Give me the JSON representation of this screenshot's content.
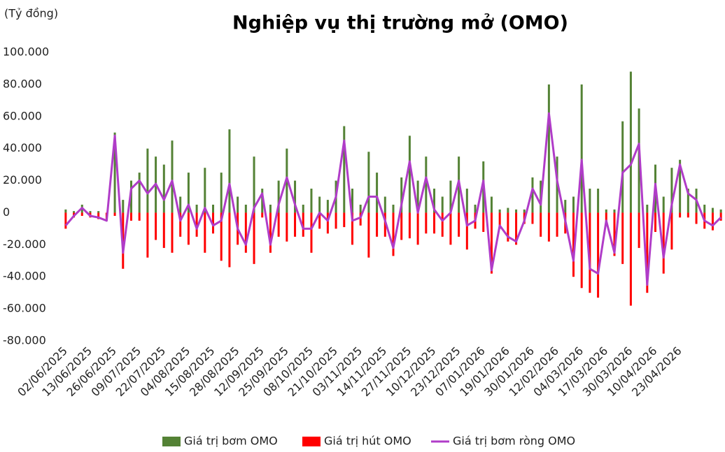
{
  "chart_data": {
    "type": "bar-line",
    "title": "Nghiệp vụ thị trường mở (OMO)",
    "y_label": "(Tỷ đồng)",
    "categories": [
      "02/06/2025",
      null,
      null,
      "13/06/2025",
      null,
      null,
      "26/06/2025",
      null,
      null,
      "09/07/2025",
      null,
      null,
      "22/07/2025",
      null,
      null,
      "04/08/2025",
      null,
      null,
      "15/08/2025",
      null,
      null,
      "28/08/2025",
      null,
      null,
      "12/09/2025",
      null,
      null,
      "25/09/2025",
      null,
      null,
      "08/10/2025",
      null,
      null,
      "21/10/2025",
      null,
      null,
      "03/11/2025",
      null,
      null,
      "14/11/2025",
      null,
      null,
      "27/11/2025",
      null,
      null,
      "10/12/2025",
      null,
      null,
      "23/12/2025",
      null,
      null,
      "07/01/2026",
      null,
      null,
      "19/01/2026",
      null,
      null,
      "30/01/2026",
      null,
      null,
      "12/02/2026",
      null,
      null,
      "04/03/2026",
      null,
      null,
      "17/03/2026",
      null,
      null,
      "30/03/2026",
      null,
      null,
      "10/04/2026",
      null,
      null,
      "23/04/2026",
      null,
      null,
      null,
      null,
      null
    ],
    "series": [
      {
        "name": "Giá trị bơm OMO",
        "type": "bar",
        "color": "#548235",
        "values": [
          2000,
          1000,
          5000,
          1000,
          1000,
          0,
          50000,
          8000,
          20000,
          25000,
          40000,
          35000,
          30000,
          45000,
          10000,
          25000,
          5000,
          28000,
          5000,
          25000,
          52000,
          10000,
          5000,
          35000,
          15000,
          5000,
          20000,
          40000,
          20000,
          5000,
          15000,
          10000,
          8000,
          20000,
          54000,
          15000,
          5000,
          38000,
          25000,
          10000,
          5000,
          22000,
          48000,
          20000,
          35000,
          15000,
          10000,
          20000,
          35000,
          15000,
          5000,
          32000,
          10000,
          2000,
          3000,
          2000,
          2000,
          22000,
          20000,
          80000,
          35000,
          8000,
          10000,
          80000,
          15000,
          15000,
          2000,
          2000,
          57000,
          88000,
          65000,
          5000,
          30000,
          10000,
          28000,
          33000,
          15000,
          15000,
          5000,
          3000,
          2000
        ]
      },
      {
        "name": "Giá trị hút OMO",
        "type": "bar",
        "color": "#ff0000",
        "values": [
          -10000,
          -3000,
          -2000,
          -3000,
          -4000,
          -5000,
          -2000,
          -35000,
          -5000,
          -5000,
          -28000,
          -17000,
          -22000,
          -25000,
          -15000,
          -20000,
          -15000,
          -25000,
          -13000,
          -30000,
          -34000,
          -20000,
          -25000,
          -32000,
          -3000,
          -25000,
          -15000,
          -18000,
          -15000,
          -15000,
          -25000,
          -10000,
          -13000,
          -10000,
          -9000,
          -20000,
          -8000,
          -28000,
          -15000,
          -15000,
          -27000,
          -17000,
          -16000,
          -20000,
          -13000,
          -13000,
          -15000,
          -20000,
          -15000,
          -23000,
          -10000,
          -12000,
          -38000,
          -10000,
          -18000,
          -20000,
          -7000,
          -7000,
          -15000,
          -18000,
          -15000,
          -13000,
          -40000,
          -47000,
          -50000,
          -53000,
          -7000,
          -27000,
          -32000,
          -58000,
          -22000,
          -50000,
          -12000,
          -38000,
          -23000,
          -3000,
          -3000,
          -7000,
          -10000,
          -11000,
          -5000
        ]
      },
      {
        "name": "Giá trị bơm ròng OMO",
        "type": "line",
        "color": "#b03cc8",
        "values": [
          -8000,
          -2000,
          3000,
          -2000,
          -3000,
          -5000,
          48000,
          -25000,
          15000,
          20000,
          12000,
          18000,
          8000,
          20000,
          -5000,
          5000,
          -10000,
          3000,
          -8000,
          -5000,
          18000,
          -10000,
          -20000,
          3000,
          12000,
          -20000,
          5000,
          22000,
          5000,
          -10000,
          -10000,
          0,
          -5000,
          10000,
          45000,
          -5000,
          -3000,
          10000,
          10000,
          -5000,
          -22000,
          5000,
          32000,
          0,
          22000,
          2000,
          -5000,
          0,
          20000,
          -8000,
          -5000,
          20000,
          -36000,
          -8000,
          -15000,
          -18000,
          -5000,
          15000,
          5000,
          62000,
          20000,
          -5000,
          -30000,
          33000,
          -35000,
          -38000,
          -5000,
          -25000,
          25000,
          30000,
          43000,
          -45000,
          18000,
          -28000,
          5000,
          30000,
          12000,
          8000,
          -5000,
          -8000,
          -3000
        ]
      }
    ],
    "ylim": [
      -80000,
      100000
    ],
    "yticks": [
      {
        "value": -80000,
        "label": "-80.000"
      },
      {
        "value": -60000,
        "label": "-60.000"
      },
      {
        "value": -40000,
        "label": "-40.000"
      },
      {
        "value": -20000,
        "label": "-20.000"
      },
      0,
      {
        "value": 20000,
        "label": "20.000"
      },
      {
        "value": 40000,
        "label": "40.000"
      },
      {
        "value": 60000,
        "label": "60.000"
      },
      {
        "value": 80000,
        "label": "80.000"
      },
      {
        "value": 100000,
        "label": "100.000"
      }
    ],
    "legend": "bottom"
  }
}
